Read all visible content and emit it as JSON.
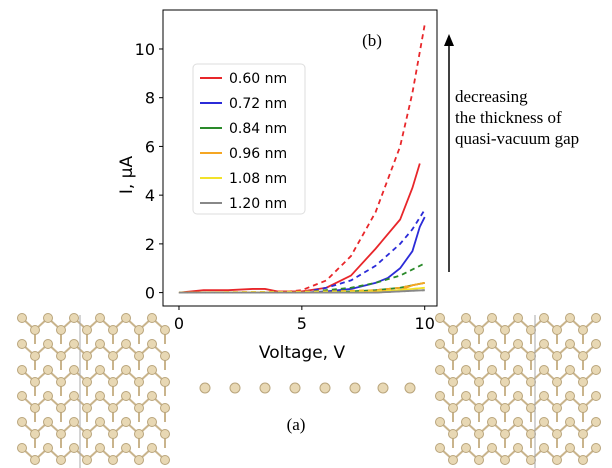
{
  "chart_data": {
    "type": "line",
    "xlabel": "Voltage, V",
    "ylabel": "I, μA",
    "panel_label": "(b)",
    "structure_label": "(a)",
    "annotation": [
      "decreasing",
      "the thickness of",
      "quasi-vacuum gap"
    ],
    "xlim": [
      -0.65,
      10.5
    ],
    "ylim": [
      -0.55,
      11.6
    ],
    "xticks": [
      0,
      5,
      10
    ],
    "yticks": [
      0,
      2,
      4,
      6,
      8,
      10
    ],
    "legend_position": "upper left",
    "series": [
      {
        "name": "0.60 nm",
        "color": "#e8262a",
        "dashed": false,
        "x": [
          0,
          1,
          2,
          3,
          3.5,
          4,
          5,
          6,
          7,
          8,
          9,
          9.5,
          9.8
        ],
        "values": [
          0,
          0.1,
          0.1,
          0.15,
          0.15,
          0.05,
          0.05,
          0.2,
          0.7,
          1.8,
          3.0,
          4.3,
          5.3
        ]
      },
      {
        "name": "0.72 nm",
        "color": "#2b2bd8",
        "dashed": false,
        "x": [
          0,
          5,
          6,
          7,
          8,
          8.5,
          9,
          9.5,
          9.8,
          10
        ],
        "values": [
          0,
          0,
          0.05,
          0.15,
          0.4,
          0.6,
          1.0,
          1.7,
          2.7,
          3.1
        ]
      },
      {
        "name": "0.84 nm",
        "color": "#2a8a2a",
        "dashed": false,
        "x": [
          0,
          6,
          8,
          9,
          9.5,
          10
        ],
        "values": [
          0,
          0,
          0.1,
          0.2,
          0.3,
          0.4
        ]
      },
      {
        "name": "0.96 nm",
        "color": "#f5a623",
        "dashed": false,
        "x": [
          0,
          7,
          9,
          9.5,
          10
        ],
        "values": [
          0,
          0,
          0.1,
          0.3,
          0.4
        ]
      },
      {
        "name": "1.08 nm",
        "color": "#f2e22a",
        "dashed": false,
        "x": [
          0,
          8,
          9,
          10
        ],
        "values": [
          0,
          0,
          0.1,
          0.2
        ]
      },
      {
        "name": "1.20 nm",
        "color": "#888888",
        "dashed": false,
        "x": [
          0,
          8,
          10
        ],
        "values": [
          0,
          0,
          0.1
        ]
      },
      {
        "color": "#e8262a",
        "dashed": true,
        "x": [
          0,
          4,
          5,
          6,
          7,
          8,
          9,
          9.5,
          10
        ],
        "values": [
          0,
          0,
          0.1,
          0.5,
          1.5,
          3.3,
          6.0,
          8.2,
          11
        ]
      },
      {
        "color": "#2b2bd8",
        "dashed": true,
        "x": [
          0,
          5,
          6,
          7,
          8,
          9,
          9.5,
          10
        ],
        "values": [
          0,
          0,
          0.2,
          0.5,
          1.1,
          2.0,
          2.6,
          3.4
        ]
      },
      {
        "color": "#2a8a2a",
        "dashed": true,
        "x": [
          0,
          5,
          6,
          7,
          8,
          9,
          10
        ],
        "values": [
          0,
          0,
          0.1,
          0.2,
          0.4,
          0.7,
          1.2
        ]
      },
      {
        "color": "#f5a623",
        "dashed": true,
        "x": [
          0,
          6,
          8,
          9,
          10
        ],
        "values": [
          0,
          0.05,
          0.1,
          0.2,
          0.4
        ]
      },
      {
        "color": "#f2e22a",
        "dashed": true,
        "x": [
          0,
          8,
          9,
          10
        ],
        "values": [
          0,
          0.05,
          0.1,
          0.2
        ]
      },
      {
        "color": "#888888",
        "dashed": true,
        "x": [
          0,
          8,
          10
        ],
        "values": [
          0,
          0,
          0.1
        ]
      }
    ]
  }
}
